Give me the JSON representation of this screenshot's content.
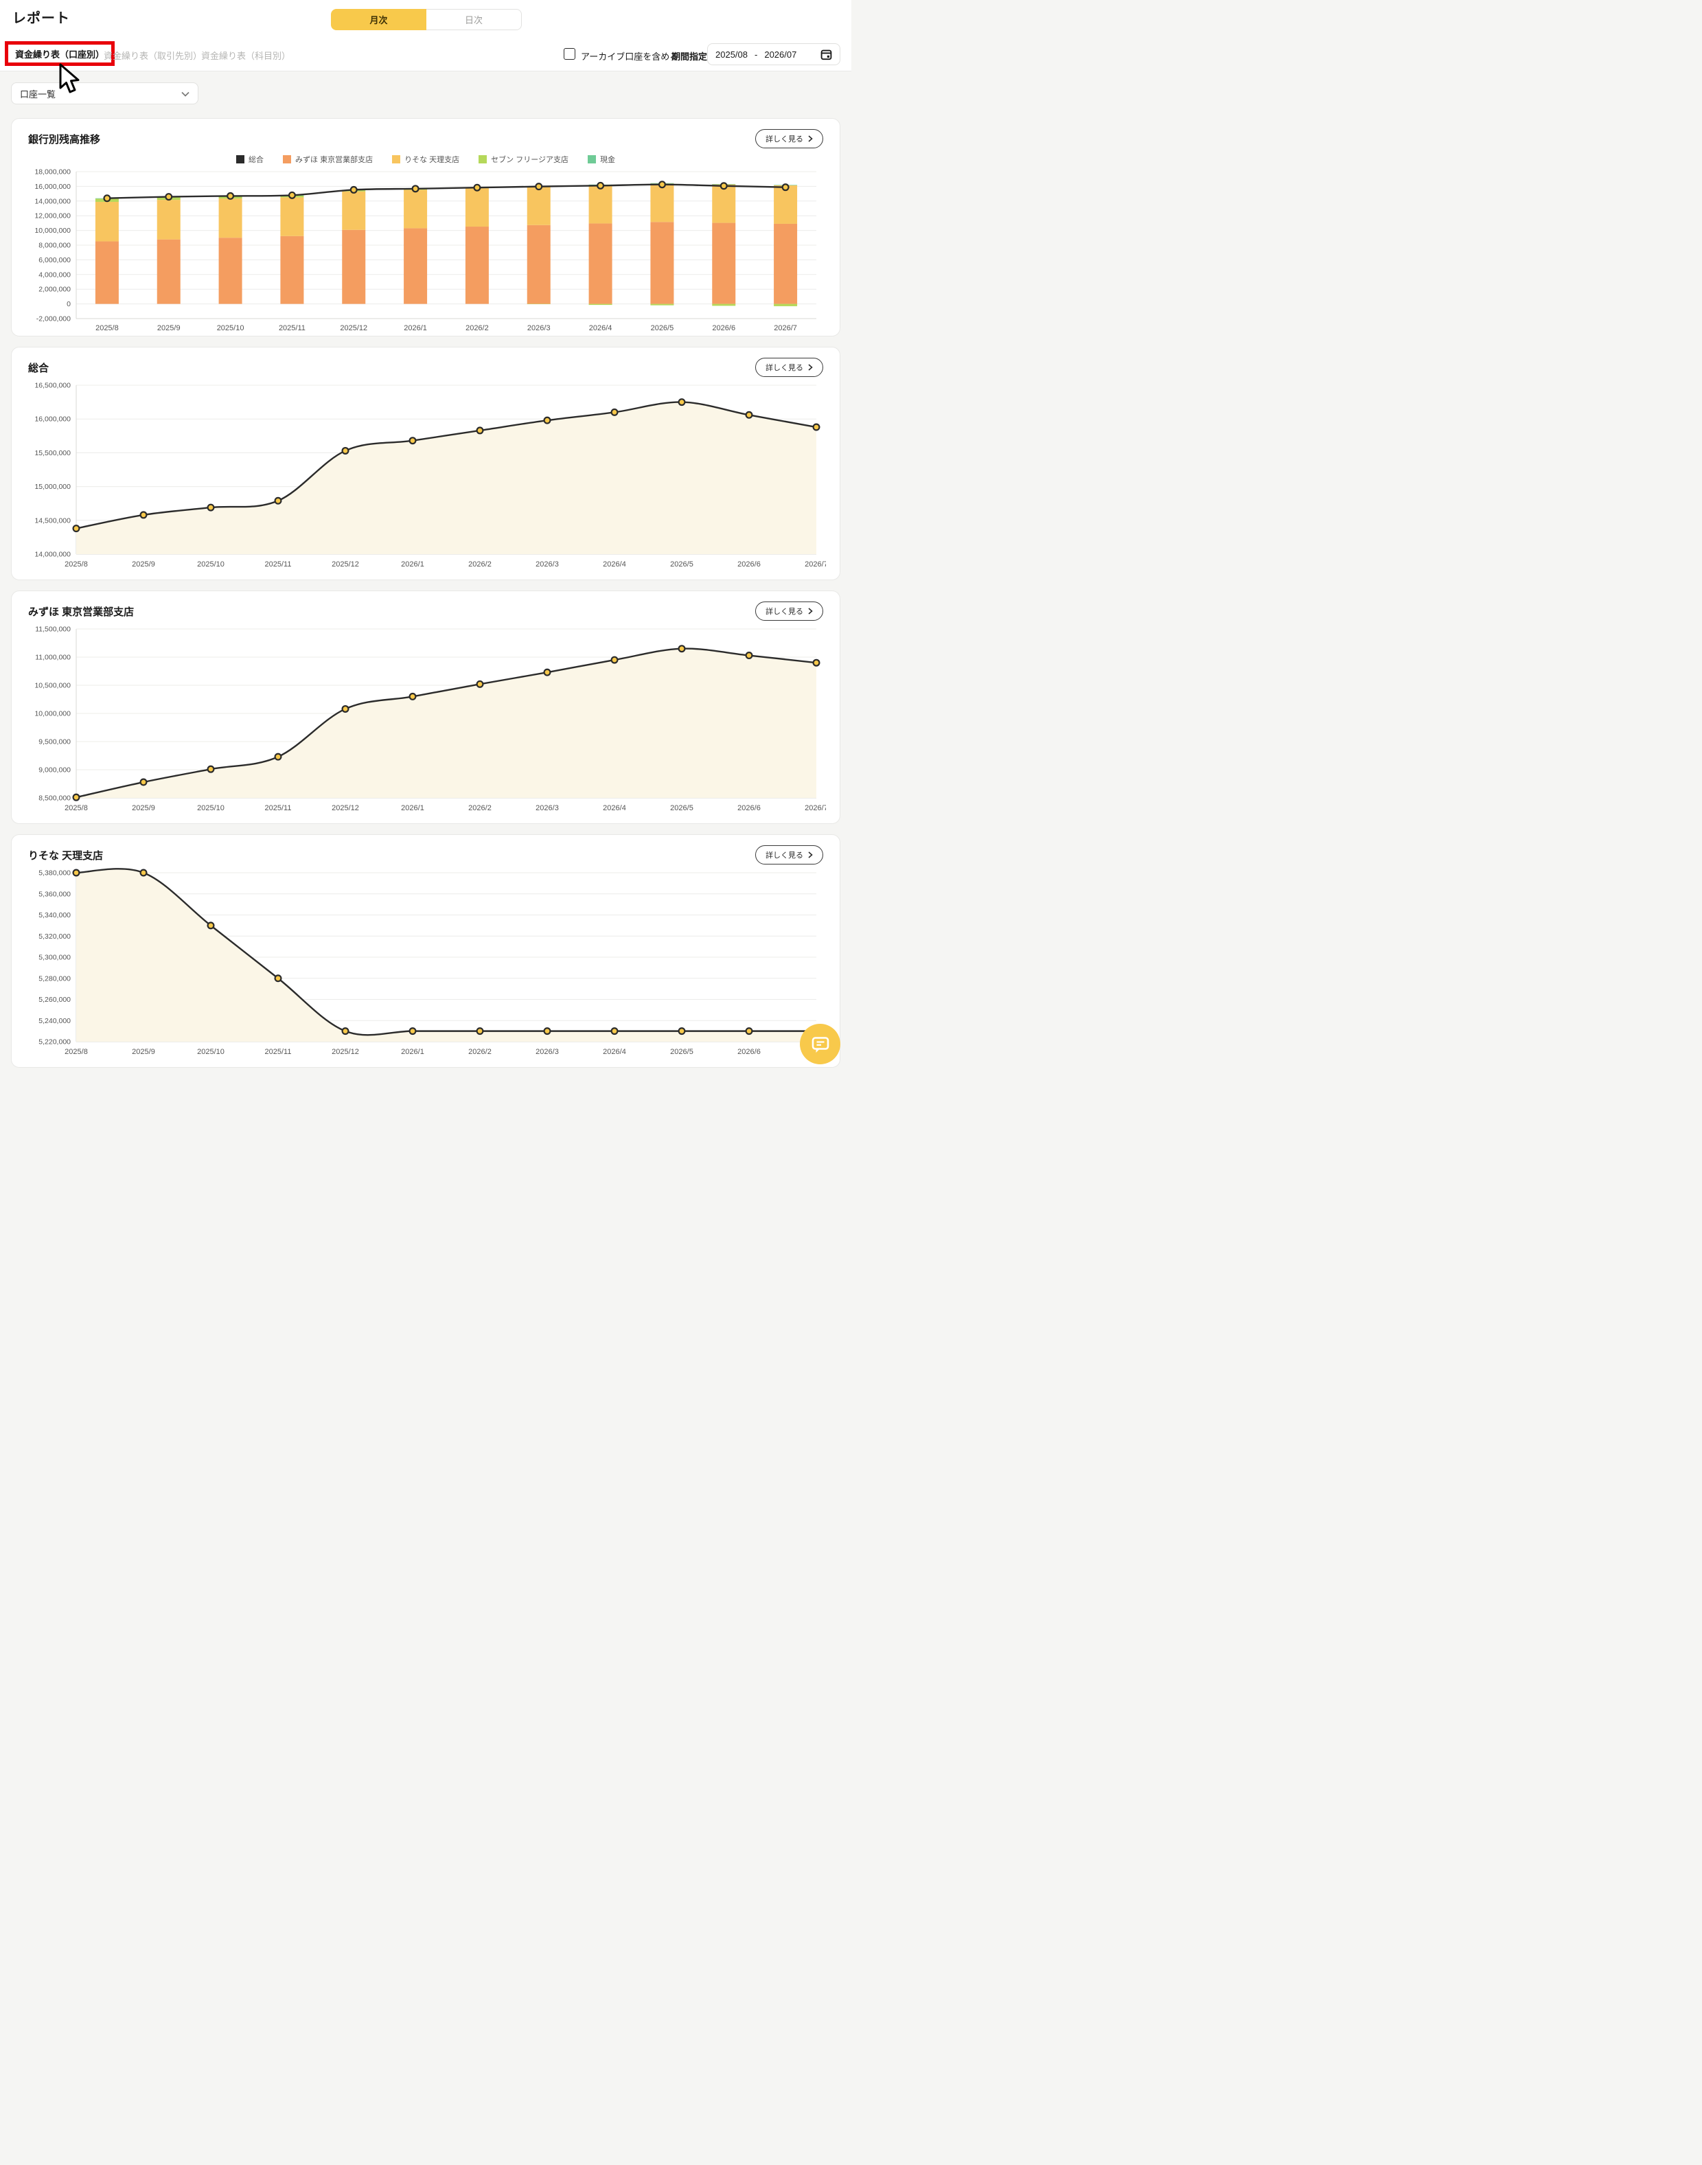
{
  "ui": {
    "detail_button_label": "詳しく見る"
  },
  "header": {
    "title": "レポート",
    "toggle": {
      "monthly_label": "月次",
      "daily_label": "日次",
      "selected": "月次"
    },
    "tabs": [
      {
        "label": "資金繰り表（口座別）",
        "active": true
      },
      {
        "label": "資金繰り表（取引先別）",
        "active": false
      },
      {
        "label": "資金繰り表（科目別）",
        "active": false
      }
    ],
    "archive_checkbox": {
      "label": "アーカイブ口座を含める",
      "checked": false
    },
    "period": {
      "label": "期間指定",
      "start": "2025/08",
      "separator": "-",
      "end": "2026/07"
    }
  },
  "filters": {
    "account_dropdown_label": "口座一覧"
  },
  "colors": {
    "accent_yellow": "#F8C94B",
    "highlight_red": "#E8000B",
    "line_dark": "#2B2B2B",
    "marker_yellow": "#F7C84A",
    "area_fill": "#FBF6E7",
    "mizuho_orange": "#F49D60",
    "risona_amber": "#F8C55F",
    "seven_lime": "#B5D85A",
    "cash_green": "#6FCB96"
  },
  "chart_data": [
    {
      "type": "bar",
      "title": "銀行別残高推移",
      "categories": [
        "2025/8",
        "2025/9",
        "2025/10",
        "2025/11",
        "2025/12",
        "2026/1",
        "2026/2",
        "2026/3",
        "2026/4",
        "2026/5",
        "2026/6",
        "2026/7"
      ],
      "series": [
        {
          "name": "総合",
          "type": "line",
          "color": "#2B2B2B",
          "values": [
            14380000,
            14580000,
            14690000,
            14790000,
            15530000,
            15680000,
            15830000,
            15980000,
            16100000,
            16250000,
            16060000,
            15880000
          ]
        },
        {
          "name": "みずほ 東京営業部支店",
          "type": "bar",
          "color": "#F49D60",
          "values": [
            8510000,
            8780000,
            9010000,
            9230000,
            10080000,
            10300000,
            10520000,
            10730000,
            10950000,
            11150000,
            11030000,
            10900000
          ]
        },
        {
          "name": "りそな 天理支店",
          "type": "bar",
          "color": "#F8C55F",
          "values": [
            5380000,
            5380000,
            5330000,
            5280000,
            5230000,
            5230000,
            5230000,
            5230000,
            5230000,
            5230000,
            5230000,
            5230000
          ]
        },
        {
          "name": "セブン フリージア支店",
          "type": "bar",
          "color": "#B5D85A",
          "values": [
            430000,
            360000,
            290000,
            220000,
            160000,
            90000,
            20000,
            -40000,
            -140000,
            -190000,
            -260000,
            -310000
          ]
        },
        {
          "name": "現金",
          "type": "bar",
          "color": "#6FCB96",
          "values": [
            60000,
            60000,
            60000,
            60000,
            60000,
            60000,
            60000,
            60000,
            60000,
            60000,
            60000,
            60000
          ]
        }
      ],
      "ylim": [
        -2000000,
        18000000
      ],
      "ytick_step": 2000000,
      "legend_position": "top",
      "grid": true
    },
    {
      "type": "area",
      "title": "総合",
      "categories": [
        "2025/8",
        "2025/9",
        "2025/10",
        "2025/11",
        "2025/12",
        "2026/1",
        "2026/2",
        "2026/3",
        "2026/4",
        "2026/5",
        "2026/6",
        "2026/7"
      ],
      "values": [
        14380000,
        14580000,
        14690000,
        14790000,
        15530000,
        15680000,
        15830000,
        15980000,
        16100000,
        16250000,
        16060000,
        15880000
      ],
      "ylim": [
        14000000,
        16500000
      ],
      "ytick_step": 500000,
      "grid": true
    },
    {
      "type": "area",
      "title": "みずほ 東京営業部支店",
      "categories": [
        "2025/8",
        "2025/9",
        "2025/10",
        "2025/11",
        "2025/12",
        "2026/1",
        "2026/2",
        "2026/3",
        "2026/4",
        "2026/5",
        "2026/6",
        "2026/7"
      ],
      "values": [
        8510000,
        8780000,
        9010000,
        9230000,
        10080000,
        10300000,
        10520000,
        10730000,
        10950000,
        11150000,
        11030000,
        10900000
      ],
      "ylim": [
        8500000,
        11500000
      ],
      "ytick_step": 500000,
      "grid": true
    },
    {
      "type": "area",
      "title": "りそな 天理支店",
      "categories": [
        "2025/8",
        "2025/9",
        "2025/10",
        "2025/11",
        "2025/12",
        "2026/1",
        "2026/2",
        "2026/3",
        "2026/4",
        "2026/5",
        "2026/6",
        "2026/7"
      ],
      "values": [
        5380000,
        5380000,
        5330000,
        5280000,
        5230000,
        5230000,
        5230000,
        5230000,
        5230000,
        5230000,
        5230000,
        5230000
      ],
      "ylim": [
        5220000,
        5380000
      ],
      "ytick_step": 20000,
      "grid": true
    }
  ]
}
